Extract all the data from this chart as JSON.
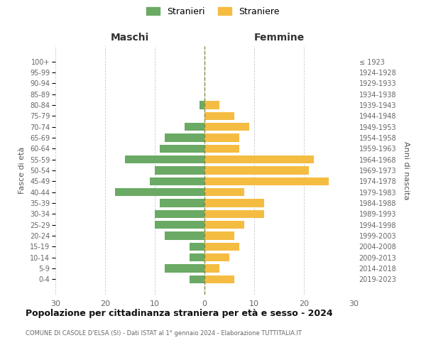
{
  "age_groups": [
    "100+",
    "95-99",
    "90-94",
    "85-89",
    "80-84",
    "75-79",
    "70-74",
    "65-69",
    "60-64",
    "55-59",
    "50-54",
    "45-49",
    "40-44",
    "35-39",
    "30-34",
    "25-29",
    "20-24",
    "15-19",
    "10-14",
    "5-9",
    "0-4"
  ],
  "birth_years": [
    "≤ 1923",
    "1924-1928",
    "1929-1933",
    "1934-1938",
    "1939-1943",
    "1944-1948",
    "1949-1953",
    "1954-1958",
    "1959-1963",
    "1964-1968",
    "1969-1973",
    "1974-1978",
    "1979-1983",
    "1984-1988",
    "1989-1993",
    "1994-1998",
    "1999-2003",
    "2004-2008",
    "2009-2013",
    "2014-2018",
    "2019-2023"
  ],
  "males": [
    0,
    0,
    0,
    0,
    1,
    0,
    4,
    8,
    9,
    16,
    10,
    11,
    18,
    9,
    10,
    10,
    8,
    3,
    3,
    8,
    3
  ],
  "females": [
    0,
    0,
    0,
    0,
    3,
    6,
    9,
    7,
    7,
    22,
    21,
    25,
    8,
    12,
    12,
    8,
    6,
    7,
    5,
    3,
    6
  ],
  "male_color": "#6aaa64",
  "female_color": "#f5bc42",
  "background_color": "#ffffff",
  "grid_color": "#cccccc",
  "title": "Popolazione per cittadinanza straniera per età e sesso - 2024",
  "subtitle": "COMUNE DI CASOLE D'ELSA (SI) - Dati ISTAT al 1° gennaio 2024 - Elaborazione TUTTITALIA.IT",
  "xlabel_left": "Maschi",
  "xlabel_right": "Femmine",
  "ylabel_left": "Fasce di età",
  "ylabel_right": "Anni di nascita",
  "legend_male": "Stranieri",
  "legend_female": "Straniere",
  "xlim": 30,
  "bar_height": 0.75
}
